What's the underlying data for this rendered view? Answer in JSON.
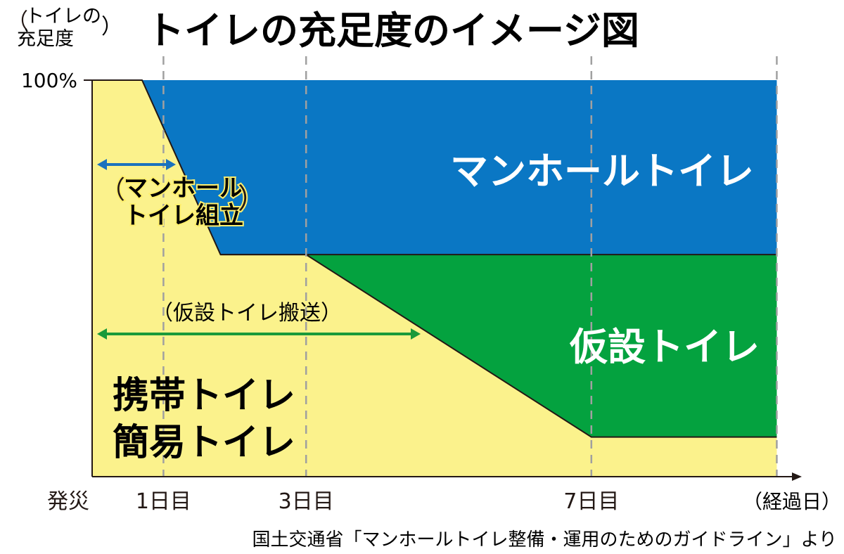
{
  "title": "トイレの充足度のイメージ図",
  "y_axis": {
    "label_line1": "トイレの",
    "label_line2": "充足度",
    "tick_100": "100%"
  },
  "x_axis": {
    "ticks": [
      {
        "label": "発災",
        "value": 0
      },
      {
        "label": "1日目",
        "value": 1
      },
      {
        "label": "3日目",
        "value": 3
      },
      {
        "label": "7日目",
        "value": 7
      }
    ],
    "unit_label": "（経過日）"
  },
  "areas": {
    "manhole": "マンホールトイレ",
    "temporary": "仮設トイレ",
    "portable_line1": "携帯トイレ",
    "portable_line2": "簡易トイレ"
  },
  "annotations": {
    "assembly_line1": "マンホール",
    "assembly_line2": "トイレ組立",
    "transport": "（仮設トイレ搬送）"
  },
  "source": "国土交通省「マンホールトイレ整備・運用のためのガイドライン」より",
  "colors": {
    "manhole": "#0a77c4",
    "temporary": "#04a23f",
    "portable": "#fbf28c",
    "assembly_arrow": "#1a72be",
    "transport_arrow": "#1a9a3a",
    "text": "#231815"
  },
  "chart_data": {
    "type": "area",
    "x_unit": "days",
    "xlim": [
      0,
      9.6
    ],
    "ylim": [
      0,
      100
    ],
    "series": [
      {
        "name": "携帯トイレ・簡易トイレ",
        "x": [
          0,
          0.7,
          1.8,
          3,
          7,
          9.6
        ],
        "y": [
          100,
          100,
          56,
          56,
          10,
          10
        ]
      },
      {
        "name": "仮設トイレ",
        "x": [
          3,
          7,
          9.6
        ],
        "y": [
          0,
          46,
          46
        ]
      },
      {
        "name": "マンホールトイレ",
        "x": [
          0.7,
          1.8,
          3,
          9.6
        ],
        "y": [
          0,
          44,
          44,
          44
        ]
      }
    ],
    "annotations": [
      {
        "text": "マンホールトイレ組立",
        "x_range": [
          0,
          1.1
        ]
      },
      {
        "text": "仮設トイレ搬送",
        "x_range": [
          0,
          4.5
        ]
      }
    ]
  }
}
